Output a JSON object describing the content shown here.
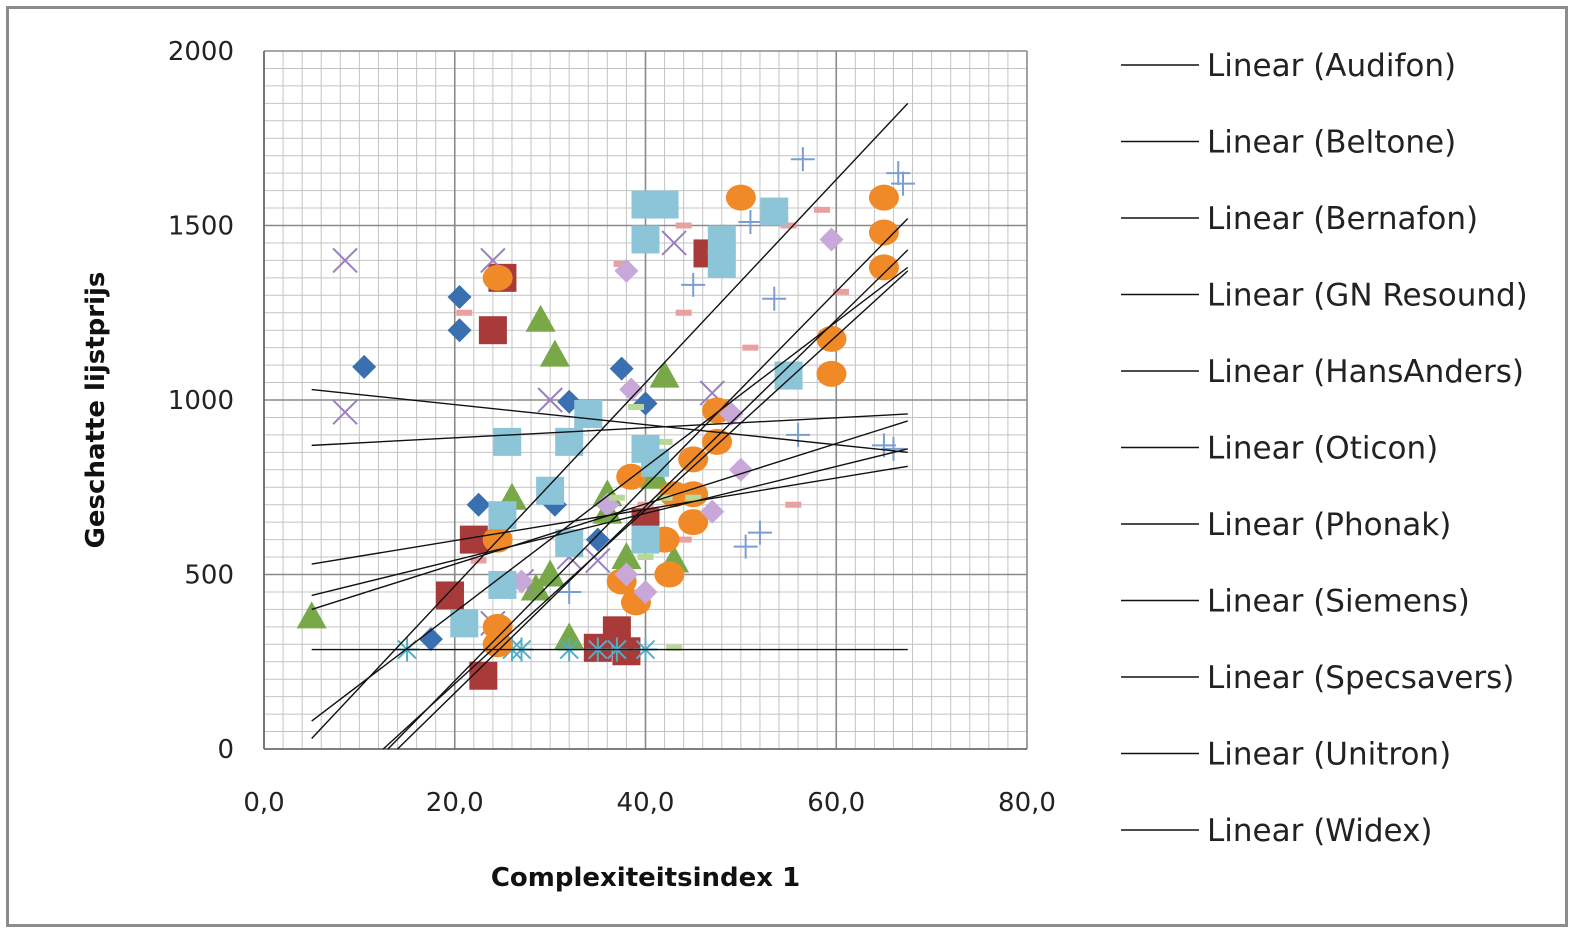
{
  "chart_data": {
    "type": "scatter",
    "title": "",
    "xlabel": "Complexiteitsindex 1",
    "ylabel": "Geschatte lijstprijs",
    "xlim": [
      0,
      80
    ],
    "ylim": [
      0,
      2000
    ],
    "x_ticks": [
      "0,0",
      "20,0",
      "40,0",
      "60,0",
      "80,0"
    ],
    "y_ticks": [
      "0",
      "500",
      "1000",
      "1500",
      "2000"
    ],
    "grid": true,
    "legend_position": "right",
    "legend": [
      "Linear (Audifon)",
      "Linear (Beltone)",
      "Linear (Bernafon)",
      "Linear (GN Resound)",
      "Linear (HansAnders)",
      "Linear (Oticon)",
      "Linear (Phonak)",
      "Linear (Siemens)",
      "Linear (Specsavers)",
      "Linear (Unitron)",
      "Linear (Widex)"
    ],
    "series": [
      {
        "color": "#3a6fb0",
        "marker": "diamond",
        "points": [
          [
            10.5,
            1095
          ],
          [
            20.5,
            1295
          ],
          [
            20.5,
            1200
          ],
          [
            17.5,
            315
          ],
          [
            22.5,
            700
          ],
          [
            32,
            995
          ],
          [
            37.5,
            1090
          ],
          [
            40,
            990
          ],
          [
            30.5,
            700
          ],
          [
            35,
            600
          ],
          [
            40,
            650
          ]
        ]
      },
      {
        "color": "#a83a3a",
        "marker": "square",
        "points": [
          [
            25,
            1350
          ],
          [
            24,
            1200
          ],
          [
            19.5,
            440
          ],
          [
            22,
            600
          ],
          [
            23,
            210
          ],
          [
            35,
            290
          ],
          [
            37,
            340
          ],
          [
            38,
            280
          ],
          [
            46.5,
            1420
          ],
          [
            40,
            650
          ]
        ]
      },
      {
        "color": "#e8a0a0",
        "marker": "dash",
        "points": [
          [
            21,
            1250
          ],
          [
            22.5,
            540
          ],
          [
            37.5,
            1390
          ],
          [
            44,
            1500
          ],
          [
            44,
            1250
          ],
          [
            51,
            1150
          ],
          [
            55,
            1500
          ],
          [
            58.5,
            1545
          ],
          [
            59,
            1190
          ],
          [
            60.5,
            1310
          ],
          [
            55.5,
            700
          ],
          [
            44,
            600
          ],
          [
            40,
            700
          ]
        ]
      },
      {
        "color": "#78a848",
        "marker": "triangle",
        "points": [
          [
            5,
            380
          ],
          [
            26,
            720
          ],
          [
            29,
            1230
          ],
          [
            30.5,
            1130
          ],
          [
            28.5,
            460
          ],
          [
            30,
            500
          ],
          [
            32,
            320
          ],
          [
            36,
            730
          ],
          [
            36,
            680
          ],
          [
            42,
            1070
          ],
          [
            41,
            780
          ],
          [
            43,
            540
          ],
          [
            38,
            550
          ]
        ]
      },
      {
        "color": "#9b7fc0",
        "marker": "x",
        "points": [
          [
            8.5,
            1400
          ],
          [
            8.5,
            965
          ],
          [
            24,
            1400
          ],
          [
            30,
            1000
          ],
          [
            43,
            1450
          ],
          [
            47,
            1020
          ],
          [
            32,
            550
          ],
          [
            27,
            480
          ],
          [
            35,
            540
          ],
          [
            24,
            360
          ]
        ]
      },
      {
        "color": "#4fb0c8",
        "marker": "asterisk",
        "points": [
          [
            15,
            285
          ],
          [
            26,
            285
          ],
          [
            27,
            285
          ],
          [
            32,
            285
          ],
          [
            35,
            285
          ],
          [
            37,
            285
          ],
          [
            40,
            285
          ]
        ]
      },
      {
        "color": "#f08a28",
        "marker": "circle",
        "points": [
          [
            24.5,
            1350
          ],
          [
            24.5,
            600
          ],
          [
            24.5,
            350
          ],
          [
            24.5,
            300
          ],
          [
            37.5,
            480
          ],
          [
            38.5,
            780
          ],
          [
            39,
            420
          ],
          [
            42,
            600
          ],
          [
            42.5,
            500
          ],
          [
            43,
            730
          ],
          [
            45,
            830
          ],
          [
            45,
            730
          ],
          [
            45,
            650
          ],
          [
            47.5,
            970
          ],
          [
            47.5,
            880
          ],
          [
            50,
            1580
          ],
          [
            59.5,
            1175
          ],
          [
            59.5,
            1075
          ],
          [
            65,
            1580
          ],
          [
            65,
            1480
          ],
          [
            65,
            1380
          ]
        ]
      },
      {
        "color": "#c8a8d8",
        "marker": "diamond",
        "points": [
          [
            38,
            1370
          ],
          [
            38.5,
            1030
          ],
          [
            49,
            960
          ],
          [
            50,
            800
          ],
          [
            47,
            680
          ],
          [
            40,
            450
          ],
          [
            38,
            500
          ],
          [
            36,
            700
          ],
          [
            59.5,
            1460
          ],
          [
            27,
            480
          ]
        ]
      },
      {
        "color": "#7a9ed0",
        "marker": "plus",
        "points": [
          [
            56.5,
            1690
          ],
          [
            66.5,
            1650
          ],
          [
            67,
            1620
          ],
          [
            51,
            1510
          ],
          [
            45,
            1330
          ],
          [
            53.5,
            1290
          ],
          [
            56,
            900
          ],
          [
            52,
            620
          ],
          [
            50.5,
            580
          ],
          [
            65,
            870
          ],
          [
            66,
            860
          ],
          [
            32,
            450
          ]
        ]
      },
      {
        "color": "#b8d898",
        "marker": "dash",
        "points": [
          [
            30,
            720
          ],
          [
            37,
            720
          ],
          [
            39,
            980
          ],
          [
            40,
            550
          ],
          [
            42,
            880
          ],
          [
            42,
            720
          ],
          [
            45,
            720
          ],
          [
            43,
            290
          ]
        ]
      },
      {
        "color": "#8cc4d8",
        "marker": "square",
        "points": [
          [
            25.5,
            880
          ],
          [
            32,
            880
          ],
          [
            34,
            960
          ],
          [
            30,
            740
          ],
          [
            32,
            590
          ],
          [
            25,
            670
          ],
          [
            25,
            470
          ],
          [
            21,
            360
          ],
          [
            40,
            1560
          ],
          [
            40,
            1460
          ],
          [
            42,
            1560
          ],
          [
            48,
            1460
          ],
          [
            48,
            1390
          ],
          [
            53.5,
            1540
          ],
          [
            55,
            1070
          ],
          [
            40,
            860
          ],
          [
            41,
            820
          ],
          [
            40,
            600
          ]
        ]
      }
    ],
    "trendlines": [
      [
        [
          5,
          1030
        ],
        [
          67.5,
          850
        ]
      ],
      [
        [
          5,
          870
        ],
        [
          67.5,
          960
        ]
      ],
      [
        [
          5,
          530
        ],
        [
          67.5,
          810
        ]
      ],
      [
        [
          5,
          440
        ],
        [
          67.5,
          860
        ]
      ],
      [
        [
          5,
          400
        ],
        [
          67.5,
          940
        ]
      ],
      [
        [
          5,
          80
        ],
        [
          67.5,
          1380
        ]
      ],
      [
        [
          5,
          30
        ],
        [
          67.5,
          1850
        ]
      ],
      [
        [
          13,
          0
        ],
        [
          67.5,
          1520
        ]
      ],
      [
        [
          14,
          0
        ],
        [
          67.5,
          1430
        ]
      ],
      [
        [
          12.5,
          0
        ],
        [
          67.5,
          1370
        ]
      ],
      [
        [
          5,
          285
        ],
        [
          67.5,
          285
        ]
      ]
    ]
  }
}
